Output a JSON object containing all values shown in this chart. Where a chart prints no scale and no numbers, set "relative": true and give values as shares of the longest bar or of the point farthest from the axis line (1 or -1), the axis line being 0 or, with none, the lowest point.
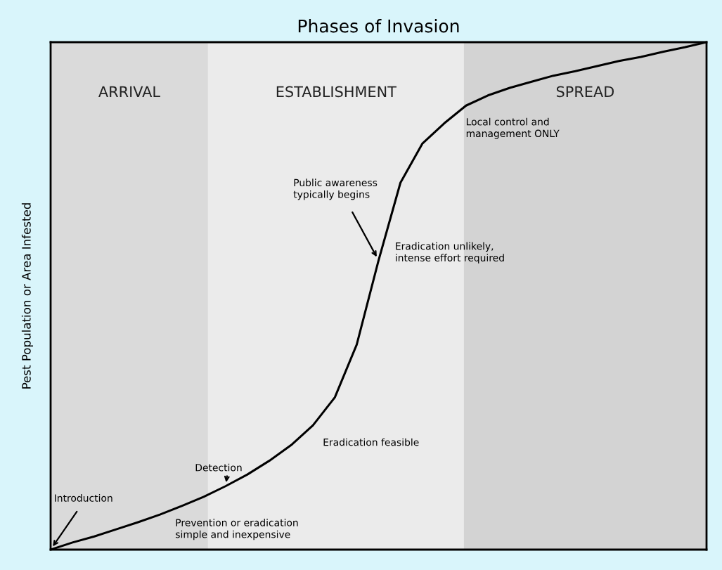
{
  "chart_data": {
    "type": "line",
    "title": "Phases of Invasion",
    "ylabel": "Pest Population or Area Infested",
    "relative": true,
    "categories": [
      null,
      null,
      null,
      null,
      null,
      null,
      null,
      null,
      null,
      null,
      null,
      null,
      null,
      null,
      null,
      null,
      null,
      null,
      null,
      null,
      null,
      null,
      null,
      null,
      null,
      null,
      null,
      null,
      null,
      null,
      null
    ],
    "series": [
      {
        "color": "#000000",
        "values": [
          0,
          0.014,
          0.026,
          0.04,
          0.054,
          0.069,
          0.086,
          0.104,
          0.125,
          0.148,
          0.175,
          0.206,
          0.245,
          0.3,
          0.404,
          0.57,
          0.723,
          0.8,
          0.84,
          0.875,
          0.895,
          0.91,
          0.922,
          0.934,
          0.943,
          0.953,
          0.963,
          0.971,
          0.981,
          0.99,
          1
        ]
      }
    ],
    "annotations": [
      "ARRIVAL",
      "ESTABLISHMENT",
      "SPREAD",
      "Introduction",
      "Detection",
      "Public awareness\ntypically begins",
      "Eradication feasible",
      "Eradication unlikely,\nintense effort required",
      "Prevention or eradication\nsimple and inexpensive",
      "Local control and\nmanagement ONLY"
    ],
    "legend": false,
    "marker": "none",
    "line_style": "solid"
  }
}
